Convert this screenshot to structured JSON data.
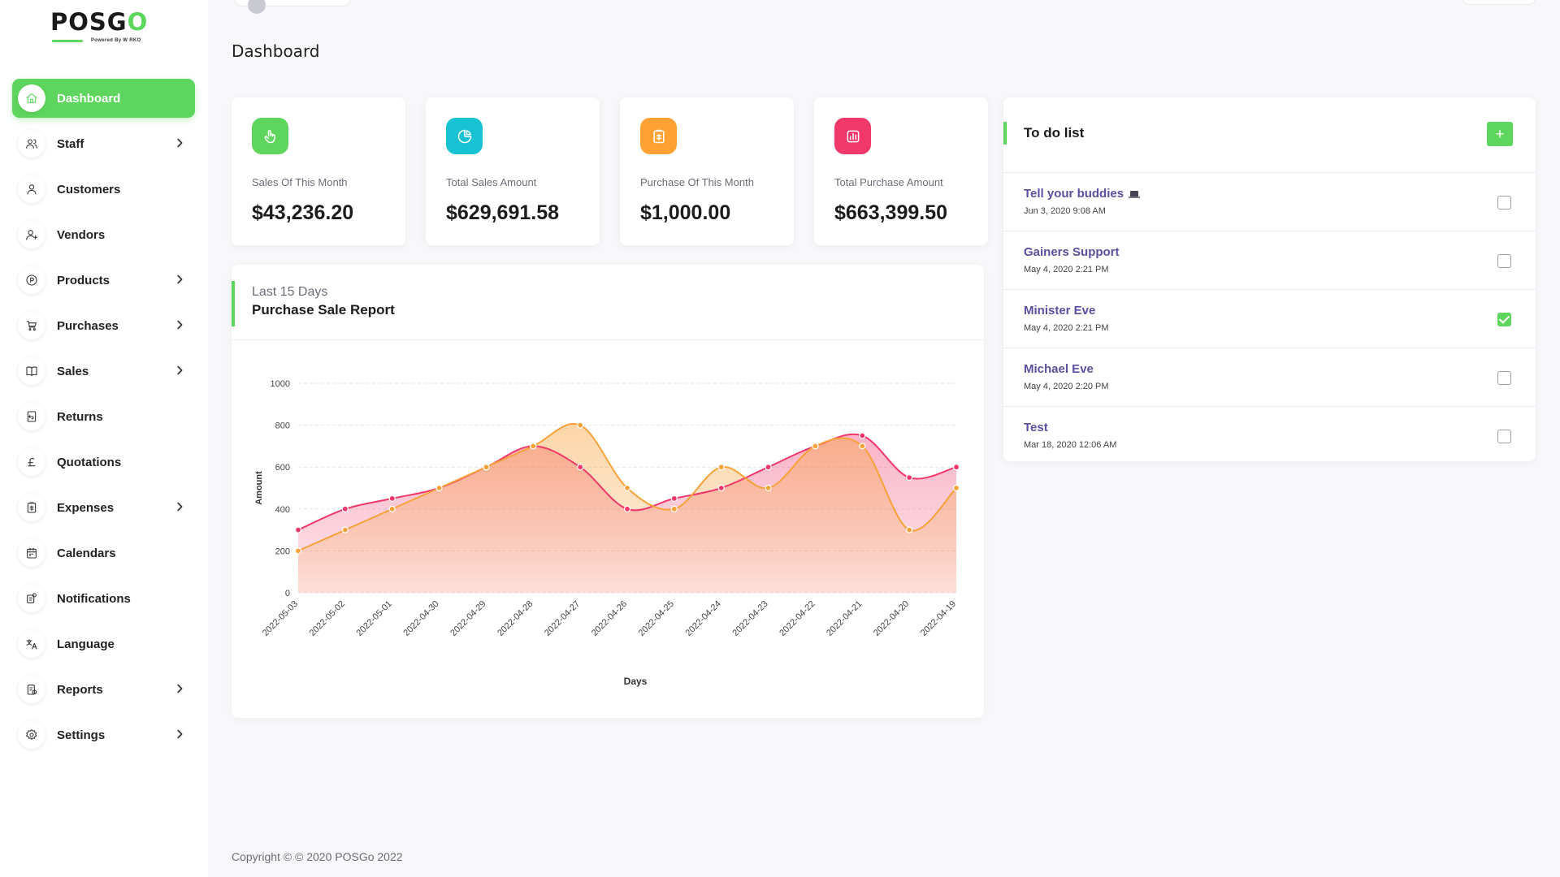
{
  "brand": {
    "name": "POSGO",
    "tagline": "Powered By W RKO"
  },
  "page_title": "Dashboard",
  "nav": [
    {
      "label": "Dashboard",
      "icon": "home-icon",
      "active": true,
      "chevron": false
    },
    {
      "label": "Staff",
      "icon": "users-icon",
      "active": false,
      "chevron": true
    },
    {
      "label": "Customers",
      "icon": "user-icon",
      "active": false,
      "chevron": false
    },
    {
      "label": "Vendors",
      "icon": "user-plus-icon",
      "active": false,
      "chevron": false
    },
    {
      "label": "Products",
      "icon": "product-icon",
      "active": false,
      "chevron": true
    },
    {
      "label": "Purchases",
      "icon": "cart-icon",
      "active": false,
      "chevron": true
    },
    {
      "label": "Sales",
      "icon": "book-icon",
      "active": false,
      "chevron": true
    },
    {
      "label": "Returns",
      "icon": "return-icon",
      "active": false,
      "chevron": false
    },
    {
      "label": "Quotations",
      "icon": "pound-icon",
      "active": false,
      "chevron": false
    },
    {
      "label": "Expenses",
      "icon": "clipboard-icon",
      "active": false,
      "chevron": true
    },
    {
      "label": "Calendars",
      "icon": "calendar-icon",
      "active": false,
      "chevron": false
    },
    {
      "label": "Notifications",
      "icon": "bell-icon",
      "active": false,
      "chevron": false
    },
    {
      "label": "Language",
      "icon": "translate-icon",
      "active": false,
      "chevron": false
    },
    {
      "label": "Reports",
      "icon": "report-icon",
      "active": false,
      "chevron": true
    },
    {
      "label": "Settings",
      "icon": "gear-icon",
      "active": false,
      "chevron": true
    }
  ],
  "stats": [
    {
      "label": "Sales Of This Month",
      "value": "$43,236.20",
      "color": "#5ed65e",
      "icon": "hand-pointer-icon"
    },
    {
      "label": "Total Sales Amount",
      "value": "$629,691.58",
      "color": "#17c3d2",
      "icon": "pie-chart-icon"
    },
    {
      "label": "Purchase Of This Month",
      "value": "$1,000.00",
      "color": "#ffa133",
      "icon": "clipboard-icon"
    },
    {
      "label": "Total Purchase Amount",
      "value": "$663,399.50",
      "color": "#f0386b",
      "icon": "bar-chart-icon"
    }
  ],
  "report": {
    "subtitle": "Last 15 Days",
    "title": "Purchase Sale Report"
  },
  "chart_data": {
    "type": "area",
    "categories": [
      "2022-05-03",
      "2022-05-02",
      "2022-05-01",
      "2022-04-30",
      "2022-04-29",
      "2022-04-28",
      "2022-04-27",
      "2022-04-26",
      "2022-04-25",
      "2022-04-24",
      "2022-04-23",
      "2022-04-22",
      "2022-04-21",
      "2022-04-20",
      "2022-04-19"
    ],
    "series": [
      {
        "color": "#f0386b",
        "values": [
          300,
          400,
          450,
          500,
          600,
          700,
          600,
          400,
          450,
          500,
          600,
          700,
          750,
          550,
          600
        ]
      },
      {
        "color": "#f7a23a",
        "values": [
          200,
          300,
          400,
          500,
          600,
          700,
          800,
          500,
          400,
          600,
          500,
          700,
          700,
          300,
          500
        ]
      }
    ],
    "xlabel": "Days",
    "ylabel": "Amount",
    "ylim": [
      0,
      1000
    ],
    "yticks": [
      0,
      200,
      400,
      600,
      800,
      1000
    ],
    "grid": true
  },
  "todo": {
    "title": "To do list",
    "add_label": "+",
    "items": [
      {
        "title": "Tell your buddies",
        "date": "Jun 3, 2020 9:08 AM",
        "checked": false,
        "emoji": "laptop-icon"
      },
      {
        "title": "Gainers Support",
        "date": "May 4, 2020 2:21 PM",
        "checked": false
      },
      {
        "title": "Minister Eve",
        "date": "May 4, 2020 2:21 PM",
        "checked": true
      },
      {
        "title": "Michael Eve",
        "date": "May 4, 2020 2:20 PM",
        "checked": false
      },
      {
        "title": "Test",
        "date": "Mar 18, 2020 12:06 AM",
        "checked": false
      }
    ]
  },
  "footer": "Copyright © © 2020 POSGo 2022"
}
